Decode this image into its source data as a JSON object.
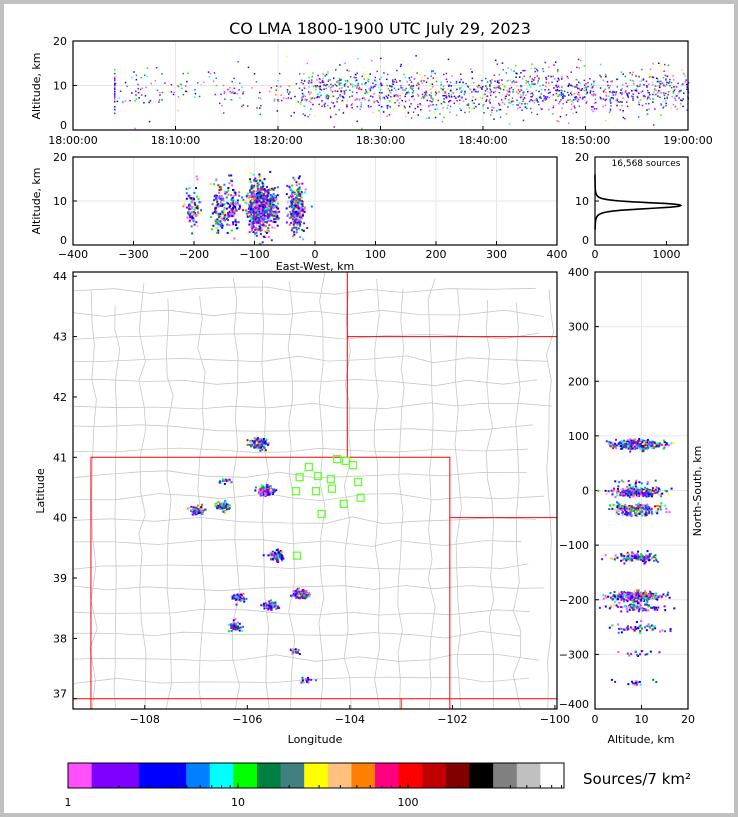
{
  "chart_data": {
    "type": "scatter",
    "title": "CO LMA 1800-1900 UTC July 29, 2023",
    "source_count_label": "16,568 sources",
    "time_altitude": {
      "ylabel": "Altitude, km",
      "xlim_minutes": [
        0,
        60
      ],
      "ylim": [
        0,
        20
      ],
      "xtick_labels": [
        "18:00:00",
        "18:10:00",
        "18:20:00",
        "18:30:00",
        "18:40:00",
        "18:50:00",
        "19:00:00"
      ],
      "yticks": [
        0,
        10,
        20
      ]
    },
    "eastwest_altitude": {
      "xlabel": "East-West, km",
      "ylabel": "Altitude, km",
      "xlim": [
        -400,
        400
      ],
      "ylim": [
        0,
        20
      ],
      "xticks": [
        -400,
        -300,
        -200,
        -100,
        0,
        100,
        200,
        300,
        400
      ],
      "yticks": [
        0,
        10,
        20
      ]
    },
    "altitude_histogram": {
      "xlim": [
        0,
        1300
      ],
      "ylim": [
        0,
        20
      ],
      "xticks": [
        0,
        1000
      ],
      "yticks": [
        0,
        10,
        20
      ],
      "peak_altitude_km": 9,
      "peak_count": 1200
    },
    "plan_view": {
      "xlabel": "Longitude",
      "ylabel": "Latitude",
      "xlim": [
        -109.4,
        -99.96
      ],
      "ylim": [
        36.83,
        44.07
      ],
      "xticks": [
        -108,
        -106,
        -104,
        -102,
        -100
      ],
      "yticks": [
        37,
        38,
        39,
        40,
        41,
        42,
        43,
        44
      ],
      "stations_lonlat": [
        [
          -104.8,
          40.84
        ],
        [
          -104.25,
          40.97
        ],
        [
          -104.08,
          40.94
        ],
        [
          -103.94,
          40.87
        ],
        [
          -104.98,
          40.67
        ],
        [
          -104.62,
          40.69
        ],
        [
          -104.37,
          40.64
        ],
        [
          -103.84,
          40.59
        ],
        [
          -105.05,
          40.44
        ],
        [
          -104.66,
          40.44
        ],
        [
          -104.35,
          40.48
        ],
        [
          -103.79,
          40.33
        ],
        [
          -104.12,
          40.23
        ],
        [
          -104.55,
          40.06
        ],
        [
          -105.03,
          39.37
        ]
      ],
      "source_clusters": [
        {
          "lon": -105.8,
          "lat": 41.24,
          "n": 420
        },
        {
          "lon": -105.66,
          "lat": 40.46,
          "n": 320
        },
        {
          "lon": -106.5,
          "lat": 40.21,
          "n": 110
        },
        {
          "lon": -107.0,
          "lat": 40.13,
          "n": 80
        },
        {
          "lon": -106.44,
          "lat": 40.62,
          "n": 15
        },
        {
          "lon": -105.46,
          "lat": 39.38,
          "n": 130
        },
        {
          "lon": -104.98,
          "lat": 38.75,
          "n": 260
        },
        {
          "lon": -105.56,
          "lat": 38.56,
          "n": 80
        },
        {
          "lon": -106.19,
          "lat": 38.69,
          "n": 50
        },
        {
          "lon": -106.26,
          "lat": 38.22,
          "n": 50
        },
        {
          "lon": -105.11,
          "lat": 37.81,
          "n": 15
        },
        {
          "lon": -104.86,
          "lat": 37.31,
          "n": 15
        }
      ],
      "origin_lonlat": [
        -104.6,
        40.47
      ]
    },
    "northsouth_altitude": {
      "xlabel": "Altitude, km",
      "ylabel": "North-South, km",
      "xlim": [
        0,
        20
      ],
      "ylim": [
        -400,
        400
      ],
      "xticks": [
        0,
        10,
        20
      ],
      "yticks": [
        -400,
        -300,
        -200,
        -100,
        0,
        100,
        200,
        300,
        400
      ]
    },
    "colorbar": {
      "label": "Sources/7 km²",
      "scale": "log",
      "range": [
        1,
        830
      ],
      "tick_labels": [
        "1",
        "10",
        "100"
      ],
      "colors": [
        "#ff50ff",
        "#8000ff",
        "#8000ff",
        "#0000ff",
        "#0000ff",
        "#0080ff",
        "#00ffff",
        "#00ff00",
        "#008040",
        "#408080",
        "#ffff00",
        "#ffc080",
        "#ff8000",
        "#ff0080",
        "#ff0000",
        "#c00000",
        "#800000",
        "#000000",
        "#808080",
        "#c0c0c0",
        "#ffffff"
      ]
    }
  }
}
